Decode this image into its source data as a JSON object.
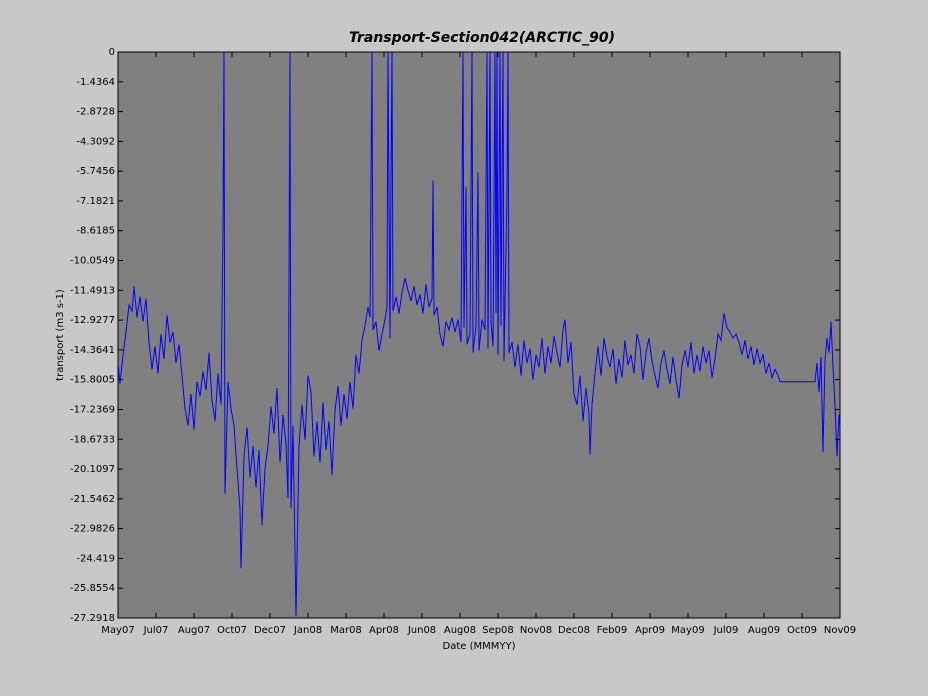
{
  "chart_data": {
    "type": "line",
    "title": "Transport-Section042(ARCTIC_90)",
    "x_label": "Date (MMMYY)",
    "y_label": "transport (m3 s-1)",
    "color": "#0000ff",
    "x": [
      0,
      2,
      5,
      8,
      11,
      14,
      16,
      19,
      22,
      25,
      28,
      31,
      34,
      37,
      40,
      43,
      46,
      49,
      52,
      55,
      58,
      61,
      64,
      67,
      70,
      73,
      76,
      79,
      82,
      85,
      88,
      91,
      94,
      97,
      100,
      103,
      105,
      106,
      107,
      110,
      113,
      116,
      119,
      122,
      123,
      126,
      129,
      132,
      135,
      138,
      141,
      144,
      147,
      150,
      153,
      156,
      159,
      162,
      165,
      168,
      170,
      171,
      172,
      173,
      175,
      178,
      181,
      184,
      187,
      190,
      193,
      196,
      199,
      202,
      205,
      208,
      211,
      214,
      217,
      220,
      223,
      226,
      229,
      232,
      235,
      238,
      241,
      244,
      247,
      250,
      252,
      254,
      255,
      258,
      261,
      264,
      267,
      269,
      270,
      272,
      273,
      274,
      275,
      278,
      281,
      284,
      287,
      290,
      293,
      296,
      299,
      302,
      305,
      308,
      311,
      314,
      315,
      316,
      319,
      322,
      325,
      328,
      331,
      334,
      337,
      340,
      343,
      345,
      346,
      348,
      349,
      352,
      354,
      355,
      358,
      360,
      361,
      364,
      367,
      369,
      370,
      372,
      373,
      375,
      377,
      378,
      379,
      380,
      382,
      383,
      385,
      386,
      389,
      390,
      391,
      394,
      397,
      400,
      403,
      406,
      409,
      412,
      415,
      418,
      421,
      424,
      427,
      430,
      433,
      436,
      439,
      442,
      445,
      447,
      450,
      453,
      456,
      459,
      462,
      465,
      468,
      471,
      472,
      474,
      477,
      480,
      483,
      486,
      489,
      492,
      495,
      498,
      501,
      504,
      507,
      510,
      513,
      516,
      519,
      522,
      525,
      528,
      531,
      534,
      537,
      540,
      543,
      546,
      549,
      552,
      555,
      558,
      561,
      564,
      567,
      570,
      573,
      576,
      579,
      582,
      585,
      588,
      591,
      594,
      597,
      600,
      603,
      606,
      609,
      612,
      615,
      618,
      621,
      624,
      627,
      630,
      633,
      636,
      639,
      642,
      645,
      648,
      651,
      654,
      657,
      660,
      662,
      672,
      682,
      692,
      697,
      699,
      701,
      703,
      705,
      707,
      709,
      711,
      713,
      715,
      717,
      719,
      721,
      722
    ],
    "values": [
      -15.0,
      -16.0,
      -14.6,
      -13.5,
      -12.2,
      -12.5,
      -11.3,
      -12.8,
      -11.8,
      -13.0,
      -11.9,
      -14.0,
      -15.3,
      -14.2,
      -15.5,
      -13.6,
      -14.8,
      -12.7,
      -14.0,
      -13.5,
      -15.0,
      -14.1,
      -15.6,
      -17.2,
      -18.0,
      -16.5,
      -18.2,
      -15.9,
      -16.6,
      -15.4,
      -16.3,
      -14.5,
      -16.8,
      -17.8,
      -15.5,
      -17.0,
      -8.6,
      0,
      -21.3,
      -15.9,
      -17.2,
      -18.0,
      -20.1,
      -22.0,
      -24.9,
      -19.5,
      -18.1,
      -20.5,
      -19.0,
      -21.0,
      -19.2,
      -22.8,
      -20.1,
      -19.0,
      -17.1,
      -18.4,
      -16.2,
      -19.8,
      -17.5,
      -18.9,
      -21.5,
      -11.2,
      0,
      -22.0,
      -18.0,
      -27.2,
      -19.0,
      -17.0,
      -18.7,
      -15.6,
      -16.4,
      -19.5,
      -17.8,
      -19.8,
      -16.9,
      -19.2,
      -17.8,
      -20.4,
      -17.3,
      -16.1,
      -18.0,
      -16.5,
      -17.7,
      -15.9,
      -17.2,
      -14.6,
      -15.5,
      -13.9,
      -13.2,
      -12.3,
      -12.8,
      0,
      -13.4,
      -13.0,
      -14.4,
      -13.6,
      -12.9,
      -12.3,
      0,
      -13.8,
      -6.3,
      0,
      -12.5,
      -11.8,
      -12.6,
      -11.6,
      -10.9,
      -11.5,
      -12.0,
      -11.3,
      -12.2,
      -11.7,
      -12.6,
      -11.2,
      -12.3,
      -11.9,
      -6.2,
      -12.7,
      -12.3,
      -13.6,
      -14.2,
      -13.0,
      -13.4,
      -12.8,
      -13.5,
      -12.9,
      -14.0,
      0,
      -13.3,
      -6.5,
      -14.1,
      -13.6,
      0,
      -14.5,
      -13.2,
      -5.8,
      -14.4,
      -12.9,
      -13.4,
      0,
      -14.3,
      0,
      -13.0,
      -14.2,
      0,
      -12.6,
      0,
      -14.6,
      0,
      -13.2,
      0,
      -14.9,
      -6.8,
      0,
      -14.5,
      -14.0,
      -15.2,
      -14.1,
      -15.6,
      -13.9,
      -15.0,
      -14.3,
      -15.8,
      -14.6,
      -15.2,
      -13.8,
      -15.5,
      -14.2,
      -15.0,
      -13.7,
      -14.5,
      -15.2,
      -13.4,
      -12.9,
      -15.0,
      -14.0,
      -16.5,
      -17.0,
      -15.6,
      -17.8,
      -16.2,
      -17.5,
      -19.4,
      -17.0,
      -15.5,
      -14.2,
      -15.6,
      -13.8,
      -14.7,
      -15.2,
      -14.3,
      -16.0,
      -14.8,
      -15.7,
      -13.9,
      -15.1,
      -14.6,
      -15.5,
      -13.6,
      -14.2,
      -15.8,
      -14.5,
      -13.8,
      -14.9,
      -15.6,
      -16.2,
      -15.0,
      -14.4,
      -15.3,
      -16.0,
      -14.7,
      -15.8,
      -16.7,
      -15.1,
      -14.4,
      -15.2,
      -14.0,
      -15.5,
      -14.6,
      -15.4,
      -14.2,
      -15.0,
      -14.4,
      -15.7,
      -14.8,
      -13.6,
      -13.9,
      -12.6,
      -13.3,
      -13.5,
      -13.8,
      -13.6,
      -14.0,
      -14.6,
      -13.9,
      -14.8,
      -14.2,
      -15.1,
      -14.3,
      -15.0,
      -14.6,
      -15.5,
      -15.0,
      -15.7,
      -15.3,
      -15.6,
      -15.9,
      -15.9,
      -15.9,
      -15.9,
      -15.9,
      -15.0,
      -16.4,
      -14.7,
      -19.3,
      -14.9,
      -13.8,
      -14.5,
      -13.0,
      -15.2,
      -17.0,
      -19.5,
      -17.5,
      -18.1
    ],
    "xlim": [
      0,
      722
    ],
    "xticks": [
      {
        "value": 0,
        "label": "May07"
      },
      {
        "value": 38,
        "label": "Jul07"
      },
      {
        "value": 76,
        "label": "Aug07"
      },
      {
        "value": 114,
        "label": "Oct07"
      },
      {
        "value": 152,
        "label": "Dec07"
      },
      {
        "value": 190,
        "label": "Jan08"
      },
      {
        "value": 228,
        "label": "Mar08"
      },
      {
        "value": 266,
        "label": "Apr08"
      },
      {
        "value": 304,
        "label": "Jun08"
      },
      {
        "value": 342,
        "label": "Aug08"
      },
      {
        "value": 380,
        "label": "Sep08"
      },
      {
        "value": 418,
        "label": "Nov08"
      },
      {
        "value": 456,
        "label": "Dec08"
      },
      {
        "value": 494,
        "label": "Feb09"
      },
      {
        "value": 532,
        "label": "Apr09"
      },
      {
        "value": 570,
        "label": "May09"
      },
      {
        "value": 608,
        "label": "Jul09"
      },
      {
        "value": 646,
        "label": "Aug09"
      },
      {
        "value": 684,
        "label": "Oct09"
      },
      {
        "value": 722,
        "label": "Nov09"
      }
    ],
    "ylim": [
      -27.2918,
      0
    ],
    "yticks": [
      0,
      -1.4364,
      -2.8728,
      -4.3092,
      -5.7456,
      -7.1821,
      -8.6185,
      -10.0549,
      -11.4913,
      -12.9277,
      -14.3641,
      -15.8005,
      -17.2369,
      -18.6733,
      -20.1097,
      -21.5462,
      -22.9826,
      -24.419,
      -25.8554,
      -27.2918
    ]
  }
}
